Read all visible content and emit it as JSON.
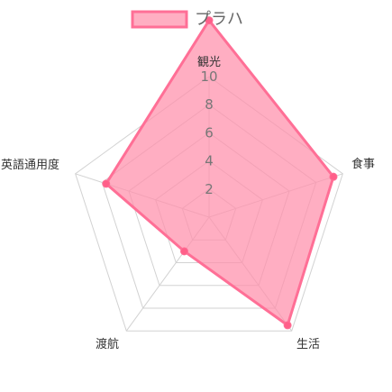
{
  "chart_data": {
    "type": "radar",
    "categories": [
      "観光",
      "食事",
      "生活",
      "渡航",
      "英語通用度"
    ],
    "series": [
      {
        "name": "プラハ",
        "values": [
          14,
          9.3,
          9.5,
          3,
          7.7
        ]
      }
    ],
    "rlim": [
      0,
      10
    ],
    "ticks": [
      2,
      4,
      6,
      8,
      10
    ],
    "legend": "top",
    "grid": true,
    "colors": {
      "series_fill": "#ff8fab",
      "series_stroke": "#ff6f96",
      "series_point": "#ff5f89",
      "grid": "#d2d2d2"
    }
  }
}
